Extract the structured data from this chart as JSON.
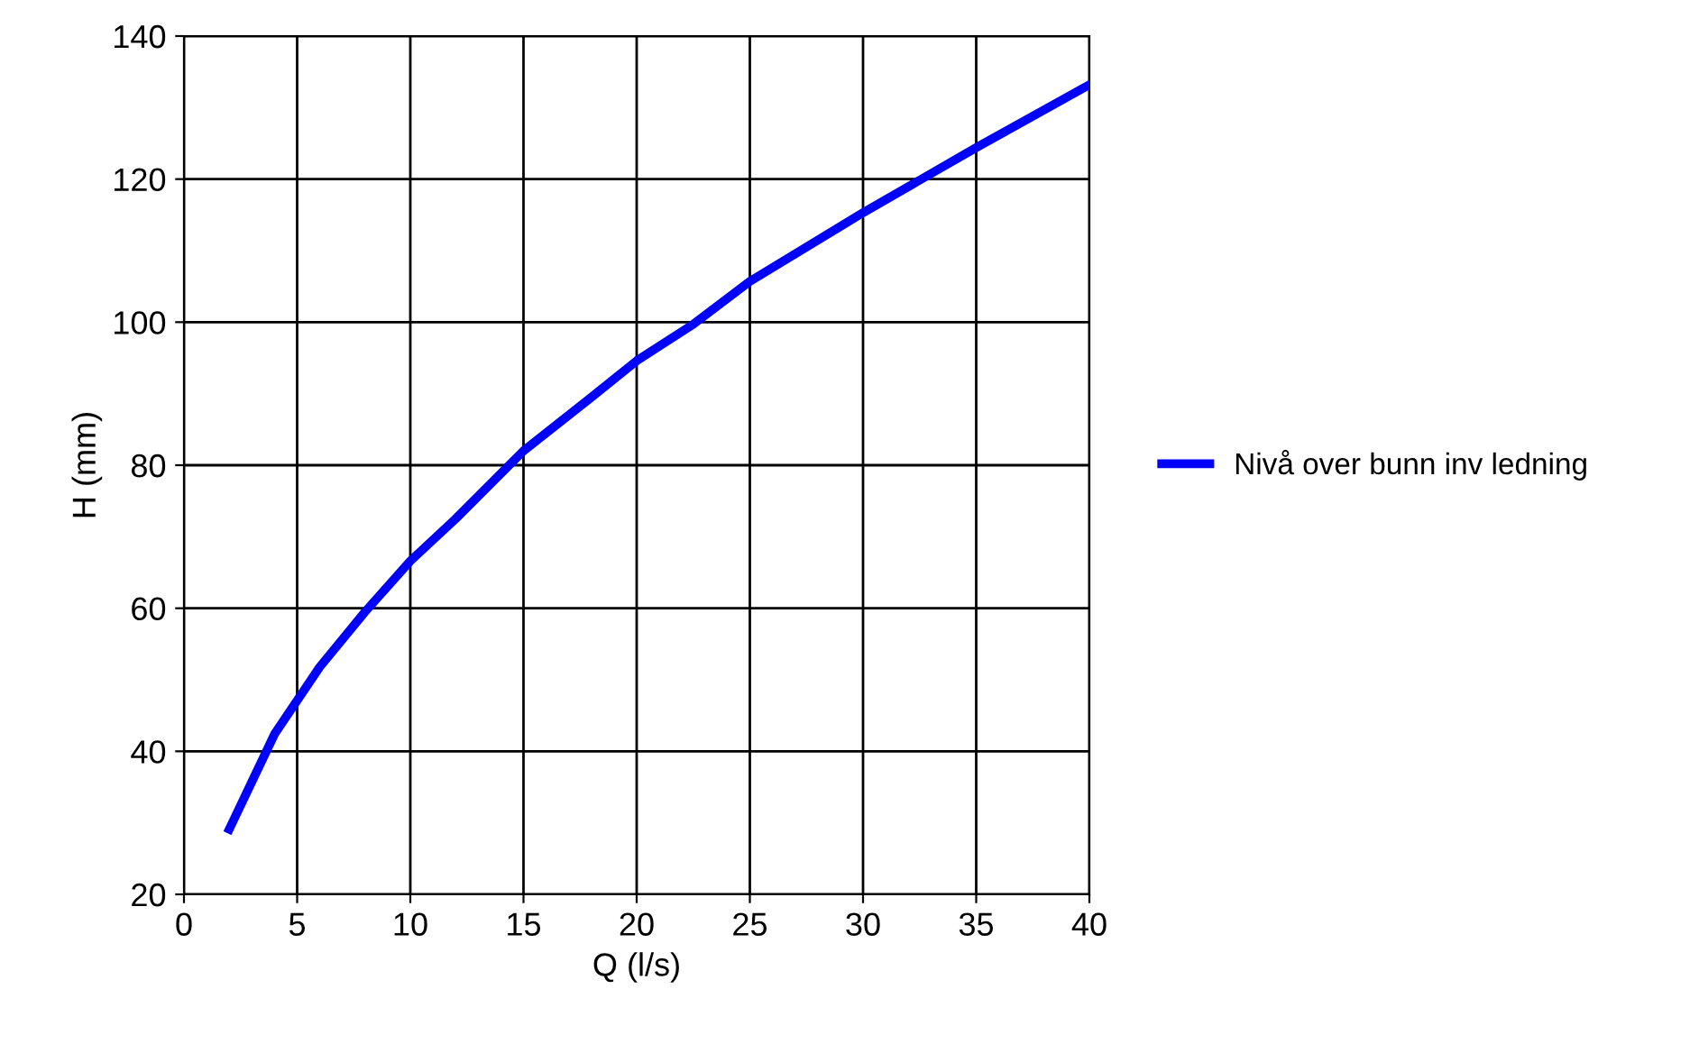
{
  "chart_data": {
    "type": "line",
    "xlabel": "Q (l/s)",
    "ylabel": "H (mm)",
    "x": [
      2,
      4,
      6,
      8,
      10,
      12,
      15,
      18,
      20,
      22.5,
      25,
      30,
      35,
      40
    ],
    "series": [
      {
        "name": "Nivå over bunn inv ledning",
        "color": "#0000ff",
        "values": [
          29.1,
          42.4,
          51.8,
          59.5,
          66.6,
          72.5,
          82,
          89.5,
          94.6,
          99.7,
          105.7,
          115.3,
          124.4,
          133.2
        ]
      }
    ],
    "xlim": [
      0,
      40
    ],
    "xticks": [
      0,
      5,
      10,
      15,
      20,
      25,
      30,
      35,
      40
    ],
    "ylim": [
      20,
      140
    ],
    "yticks": [
      20,
      40,
      60,
      80,
      100,
      120,
      140
    ],
    "grid": true,
    "legend": "right",
    "marker": "none",
    "line_style": "solid"
  }
}
